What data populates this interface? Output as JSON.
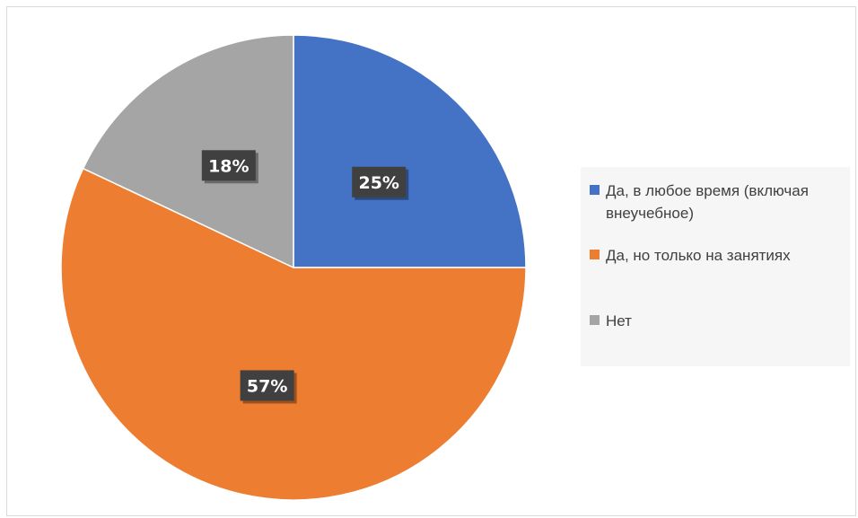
{
  "chart_data": {
    "type": "pie",
    "categories": [
      "Да, в любое время (включая внеучебное)",
      "Да, но только на занятиях",
      "Нет"
    ],
    "values": [
      25,
      57,
      18
    ],
    "data_labels": [
      "25%",
      "57%",
      "18%"
    ],
    "colors": [
      "#4472c4",
      "#ed7d31",
      "#a5a5a5"
    ],
    "title": "",
    "legend_position": "right",
    "start_angle": "12 o'clock",
    "direction": "clockwise"
  },
  "legend": {
    "items": [
      {
        "label": "Да, в любое время (включая внеучебное)",
        "color": "#4472c4"
      },
      {
        "label": "Да, но только на занятиях",
        "color": "#ed7d31"
      },
      {
        "label": "Нет",
        "color": "#a5a5a5"
      }
    ]
  }
}
